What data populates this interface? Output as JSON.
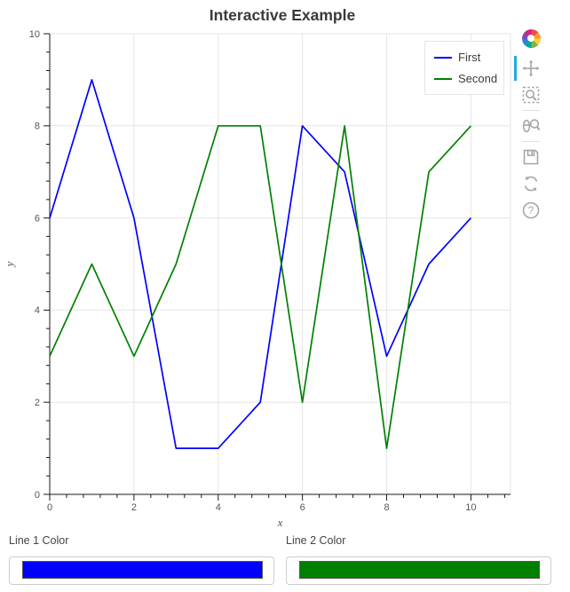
{
  "title": "Interactive Example",
  "chart_data": {
    "type": "line",
    "title": "Interactive Example",
    "xlabel": "x",
    "ylabel": "y",
    "x": [
      0,
      1,
      2,
      3,
      4,
      5,
      6,
      7,
      8,
      9,
      10
    ],
    "series": [
      {
        "name": "First",
        "color": "#0000ff",
        "values": [
          6,
          9,
          6,
          1,
          1,
          2,
          8,
          7,
          3,
          5,
          6
        ]
      },
      {
        "name": "Second",
        "color": "#008000",
        "values": [
          3,
          5,
          3,
          5,
          8,
          8,
          2,
          8,
          1,
          7,
          8
        ]
      }
    ],
    "xlim": [
      0,
      10.94
    ],
    "ylim": [
      0,
      10
    ],
    "x_ticks": [
      0,
      2,
      4,
      6,
      8,
      10
    ],
    "y_ticks": [
      0,
      2,
      4,
      6,
      8,
      10
    ],
    "minor_tick_step": 0.4,
    "grid": true,
    "grid_color": "#e5e5e5",
    "axis_color": "#1a1a1a",
    "tick_label_color": "#555555",
    "line_width": 1.7,
    "legend_position": "top_right"
  },
  "legend": {
    "items": [
      {
        "label": "First",
        "color": "#0000ff"
      },
      {
        "label": "Second",
        "color": "#008000"
      }
    ]
  },
  "toolbar": {
    "active_tool": "pan",
    "active_color": "#26aae1",
    "tools": [
      "pan",
      "box-zoom",
      "wheel-zoom",
      "save",
      "reset",
      "help"
    ]
  },
  "widgets": {
    "pickers": [
      {
        "label": "Line 1 Color",
        "value": "#0000ff"
      },
      {
        "label": "Line 2 Color",
        "value": "#008000"
      }
    ]
  }
}
